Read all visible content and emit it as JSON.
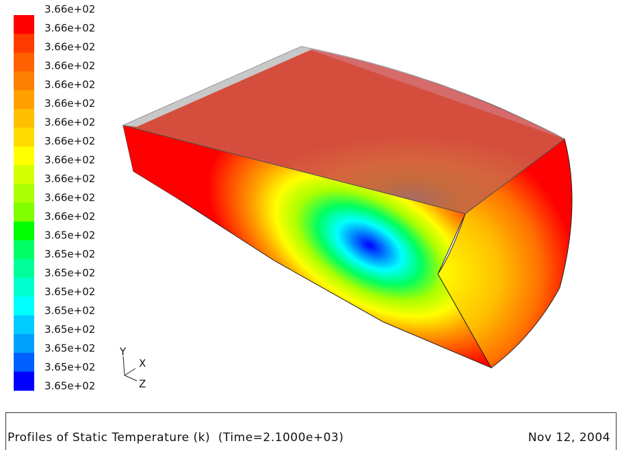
{
  "colorbar": {
    "labels": [
      "3.66e+02",
      "3.66e+02",
      "3.66e+02",
      "3.66e+02",
      "3.66e+02",
      "3.66e+02",
      "3.66e+02",
      "3.66e+02",
      "3.66e+02",
      "3.66e+02",
      "3.66e+02",
      "3.66e+02",
      "3.65e+02",
      "3.65e+02",
      "3.65e+02",
      "3.65e+02",
      "3.65e+02",
      "3.65e+02",
      "3.65e+02",
      "3.65e+02",
      "3.65e+02"
    ],
    "colors": [
      "#ff0000",
      "#ff3a00",
      "#ff6000",
      "#ff8000",
      "#ffa000",
      "#ffbf00",
      "#ffdc00",
      "#ffff00",
      "#d4ff00",
      "#aaff00",
      "#7fff00",
      "#00ff00",
      "#00ff66",
      "#00ff99",
      "#00ffcc",
      "#00ffff",
      "#00ccff",
      "#00a0ff",
      "#0060ff",
      "#0000ff"
    ]
  },
  "axes": {
    "y": "Y",
    "x": "X",
    "z": "Z"
  },
  "footer": {
    "title": "Profiles of Static Temperature (k)  (Time=2.1000e+03)",
    "date": "Nov 12, 2004"
  }
}
